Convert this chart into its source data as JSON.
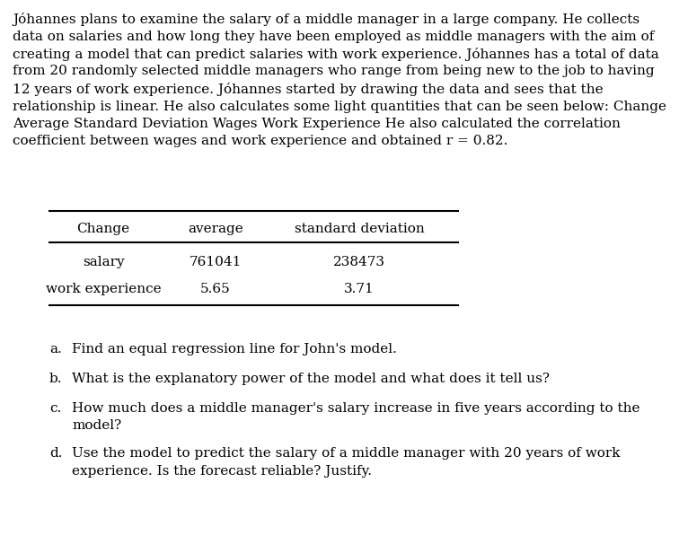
{
  "paragraph_lines": [
    "Jóhannes plans to examine the salary of a middle manager in a large company. He collects",
    "data on salaries and how long they have been employed as middle managers with the aim of",
    "creating a model that can predict salaries with work experience. Jóhannes has a total of data",
    "from 20 randomly selected middle managers who range from being new to the job to having",
    "12 years of work experience. Jóhannes started by drawing the data and sees that the",
    "relationship is linear. He also calculates some light quantities that can be seen below: Change",
    "Average Standard Deviation Wages Work Experience He also calculated the correlation",
    "coefficient between wages and work experience and obtained r = 0.82."
  ],
  "table_header": [
    "Change",
    "average",
    "standard deviation"
  ],
  "table_rows": [
    [
      "salary",
      "761041",
      "238473"
    ],
    [
      "work experience",
      "5.65",
      "3.71"
    ]
  ],
  "questions": [
    [
      "a.",
      "Find an equal regression line for John's model."
    ],
    [
      "b.",
      "What is the explanatory power of the model and what does it tell us?"
    ],
    [
      "c.",
      "How much does a middle manager's salary increase in five years according to the",
      "model?"
    ],
    [
      "d.",
      "Use the model to predict the salary of a middle manager with 20 years of work",
      "experience. Is the forecast reliable? Justify."
    ]
  ],
  "bg_color": "#ffffff",
  "text_color": "#000000",
  "font_size": 11.0
}
